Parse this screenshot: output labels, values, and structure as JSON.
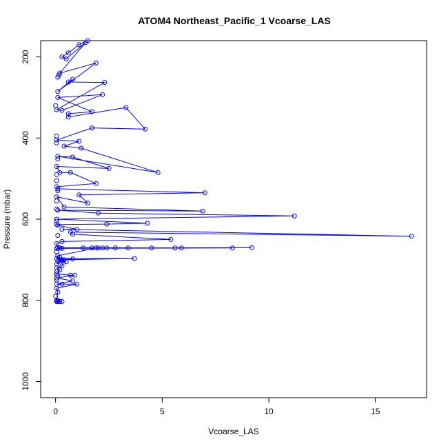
{
  "chart_data": {
    "type": "line",
    "title": "ATOM4 Northeast_Pacific_1 Vcoarse_LAS",
    "xlabel": "Vcoarse_LAS",
    "ylabel": "Pressure (mbar)",
    "xlim": [
      -0.7,
      17.4
    ],
    "ylim": [
      1040,
      160
    ],
    "y_inverted": true,
    "grid": false,
    "x_ticks": [
      0,
      5,
      10,
      15
    ],
    "y_ticks": [
      200,
      400,
      600,
      800,
      1000
    ],
    "color": "#0000ff",
    "series": [
      {
        "values": [
          [
            1.5,
            160
          ],
          [
            1.1,
            170
          ],
          [
            0.6,
            190
          ],
          [
            0.3,
            200
          ],
          [
            0.5,
            205
          ],
          [
            1.4,
            165
          ],
          [
            0.2,
            240
          ],
          [
            1.9,
            215
          ],
          [
            0.1,
            285
          ],
          [
            0.8,
            255
          ],
          [
            0.6,
            262
          ],
          [
            2.3,
            263
          ],
          [
            0.05,
            330
          ],
          [
            0.3,
            332
          ],
          [
            2.2,
            293
          ],
          [
            0.1,
            300
          ],
          [
            1.7,
            335
          ],
          [
            0.6,
            340
          ],
          [
            0.6,
            348
          ],
          [
            3.3,
            325
          ],
          [
            4.2,
            378
          ],
          [
            1.7,
            375
          ],
          [
            0.05,
            405
          ],
          [
            1.1,
            408
          ],
          [
            0.4,
            420
          ],
          [
            1.2,
            425
          ],
          [
            4.8,
            485
          ],
          [
            0.1,
            445
          ],
          [
            0.8,
            447
          ],
          [
            2.5,
            475
          ],
          [
            0.05,
            470
          ],
          [
            0.2,
            485
          ],
          [
            0.7,
            485
          ],
          [
            1.9,
            512
          ],
          [
            0.05,
            520
          ],
          [
            0.1,
            525
          ],
          [
            7.0,
            535
          ],
          [
            1.1,
            540
          ],
          [
            1.5,
            560
          ],
          [
            0.05,
            545
          ],
          [
            0.4,
            570
          ],
          [
            6.9,
            580
          ],
          [
            0.1,
            578
          ],
          [
            2.0,
            585
          ],
          [
            11.2,
            592
          ],
          [
            0.05,
            600
          ],
          [
            4.3,
            610
          ],
          [
            2.4,
            612
          ],
          [
            0.05,
            613
          ],
          [
            0.1,
            615
          ],
          [
            1.0,
            625
          ],
          [
            0.3,
            625
          ],
          [
            16.7,
            642
          ],
          [
            0.7,
            632
          ],
          [
            0.8,
            637
          ],
          [
            5.4,
            650
          ],
          [
            0.3,
            655
          ],
          [
            0.05,
            660
          ],
          [
            0.1,
            670
          ],
          [
            5.6,
            671
          ],
          [
            0.2,
            671
          ],
          [
            9.2,
            670
          ],
          [
            0.05,
            672
          ],
          [
            3.4,
            671
          ],
          [
            2.8,
            671
          ],
          [
            8.3,
            671
          ],
          [
            0.3,
            672
          ],
          [
            1.3,
            671
          ],
          [
            2.0,
            671
          ],
          [
            4.5,
            671
          ],
          [
            2.2,
            671
          ],
          [
            1.7,
            671
          ],
          [
            5.9,
            671
          ],
          [
            2.4,
            671
          ],
          [
            1.9,
            671
          ],
          [
            0.1,
            690
          ],
          [
            0.05,
            697
          ],
          [
            3.7,
            697
          ],
          [
            0.3,
            700
          ],
          [
            0.8,
            698
          ],
          [
            0.2,
            700
          ],
          [
            0.1,
            702
          ],
          [
            0.5,
            705
          ],
          [
            0.05,
            710
          ],
          [
            0.4,
            700
          ],
          [
            0.3,
            715
          ],
          [
            0.05,
            720
          ],
          [
            0.2,
            725
          ],
          [
            0.05,
            735
          ],
          [
            0.7,
            738
          ],
          [
            0.9,
            738
          ],
          [
            0.05,
            745
          ],
          [
            0.8,
            752
          ],
          [
            0.05,
            760
          ],
          [
            0.3,
            760
          ],
          [
            1.0,
            760
          ],
          [
            0.05,
            770
          ],
          [
            0.1,
            780
          ],
          [
            0.05,
            800
          ],
          [
            0.1,
            800
          ],
          [
            0.05,
            803
          ],
          [
            0.2,
            803
          ],
          [
            0.3,
            803
          ],
          [
            0.1,
            803
          ],
          [
            0.05,
            803
          ]
        ]
      }
    ],
    "extra_points": [
      [
        0.1,
        250
      ],
      [
        0.15,
        245
      ],
      [
        0.0,
        320
      ],
      [
        0.05,
        395
      ],
      [
        0.05,
        412
      ],
      [
        0.1,
        452
      ],
      [
        0.05,
        490
      ],
      [
        0.05,
        505
      ],
      [
        0.1,
        530
      ],
      [
        0.05,
        555
      ],
      [
        0.05,
        575
      ],
      [
        0.05,
        605
      ],
      [
        0.1,
        640
      ],
      [
        0.05,
        680
      ],
      [
        0.05,
        730
      ],
      [
        0.1,
        740
      ],
      [
        0.05,
        750
      ],
      [
        0.2,
        695
      ],
      [
        0.25,
        700
      ],
      [
        0.0,
        790
      ]
    ]
  }
}
